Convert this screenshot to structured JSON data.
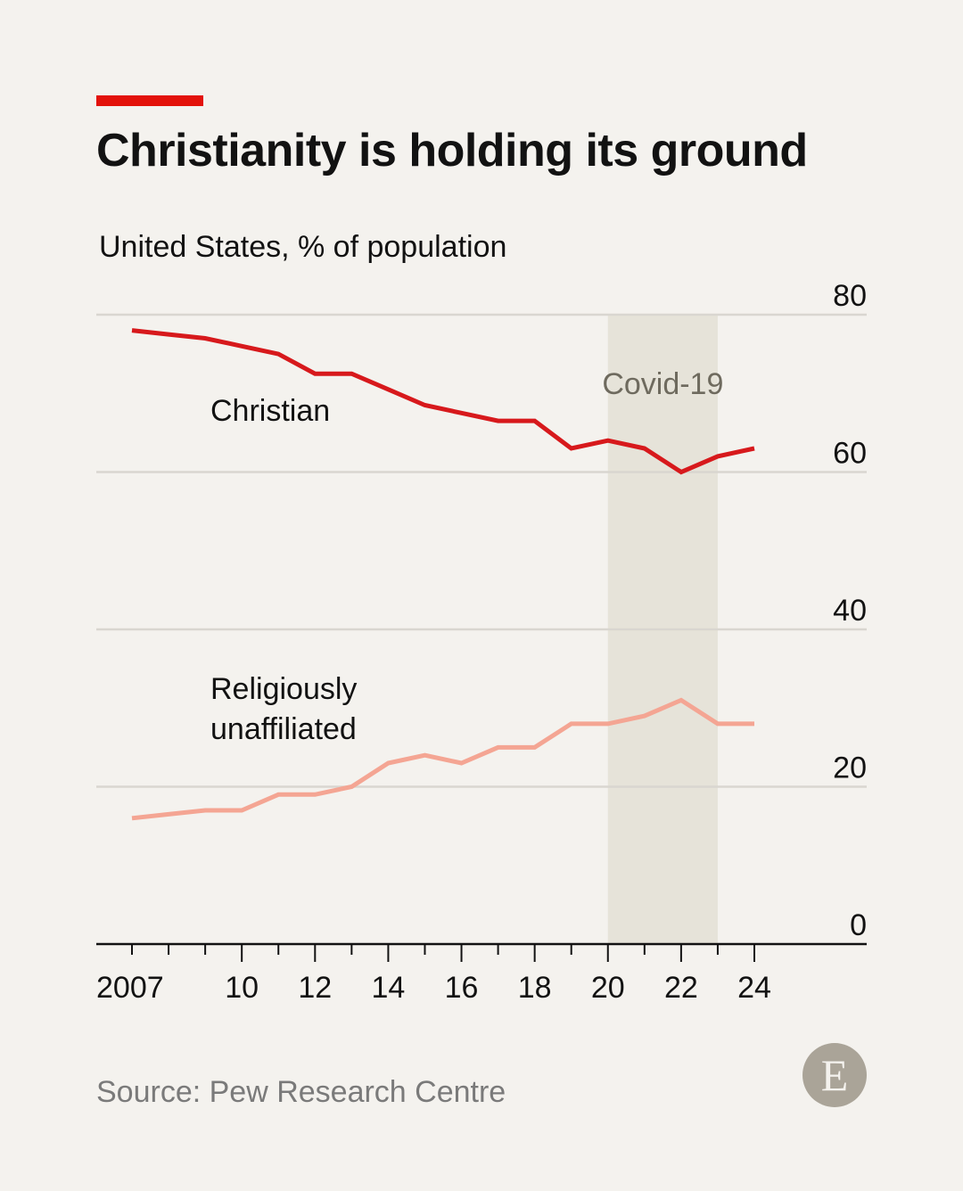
{
  "header": {
    "title": "Christianity is holding its ground",
    "subtitle": "United States, % of population"
  },
  "footer": {
    "source": "Source: Pew Research Centre",
    "logo_letter": "E"
  },
  "colors": {
    "accent": "#e3120b",
    "christian": "#d7191c",
    "unaffiliated": "#f4a593",
    "highlight": "#e6e3d9",
    "grid": "#d9d6d0"
  },
  "chart_data": {
    "type": "line",
    "x": [
      2007,
      2008,
      2009,
      2010,
      2011,
      2012,
      2013,
      2014,
      2015,
      2016,
      2017,
      2018,
      2019,
      2020,
      2021,
      2022,
      2023,
      2024
    ],
    "series": [
      {
        "name": "Christian",
        "color": "#d7191c",
        "values": [
          78,
          77.5,
          77,
          76,
          75,
          72.5,
          72.5,
          70.5,
          68.5,
          67.5,
          66.5,
          66.5,
          63,
          64,
          63,
          60,
          62,
          63
        ]
      },
      {
        "name": "Religiously unaffiliated",
        "color": "#f4a593",
        "label_lines": [
          "Religiously",
          "unaffiliated"
        ],
        "values": [
          16,
          16.5,
          17,
          17,
          19,
          19,
          20,
          23,
          24,
          23,
          25,
          25,
          28,
          28,
          29,
          31,
          28,
          28
        ]
      }
    ],
    "highlight": {
      "label": "Covid-19",
      "from": 2020,
      "to": 2023
    },
    "ylim": [
      0,
      80
    ],
    "yticks": [
      0,
      20,
      40,
      60,
      80
    ],
    "xtick_labels": [
      {
        "x": 2007,
        "label": "2007"
      },
      {
        "x": 2010,
        "label": "10"
      },
      {
        "x": 2012,
        "label": "12"
      },
      {
        "x": 2014,
        "label": "14"
      },
      {
        "x": 2016,
        "label": "16"
      },
      {
        "x": 2018,
        "label": "18"
      },
      {
        "x": 2020,
        "label": "20"
      },
      {
        "x": 2022,
        "label": "22"
      },
      {
        "x": 2024,
        "label": "24"
      }
    ],
    "grid": true
  }
}
